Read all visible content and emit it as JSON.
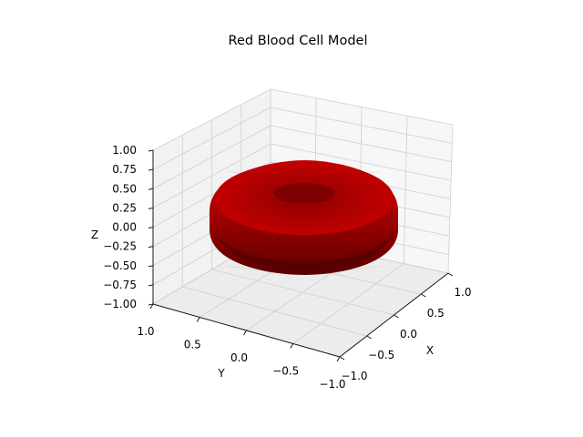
{
  "chart_data": {
    "type": "surface3d",
    "title": "Red Blood Cell Model",
    "xlabel": "X",
    "ylabel": "Y",
    "zlabel": "Z",
    "xlim": [
      -1.0,
      1.0
    ],
    "ylim": [
      -1.0,
      1.0
    ],
    "zlim": [
      -1.0,
      1.0
    ],
    "xticks": [
      "−1.0",
      "−0.5",
      "0.0",
      "0.5",
      "1.0"
    ],
    "yticks": [
      "1.0",
      "0.5",
      "0.0",
      "−0.5",
      "−1.0"
    ],
    "zticks": [
      "1.00",
      "0.75",
      "0.50",
      "0.25",
      "0.00",
      "−0.25",
      "−0.50",
      "−0.75",
      "−1.00"
    ],
    "grid": true,
    "surface": {
      "shape": "torus",
      "major_radius": 0.6,
      "minor_radius": 0.4,
      "color": "#c00000"
    }
  },
  "colors": {
    "pane_top": "#f2f2f2",
    "pane_side": "#f7f7f7",
    "grid": "#cfcfcf",
    "axis": "#1a1a1a",
    "surface": "#c00000"
  }
}
